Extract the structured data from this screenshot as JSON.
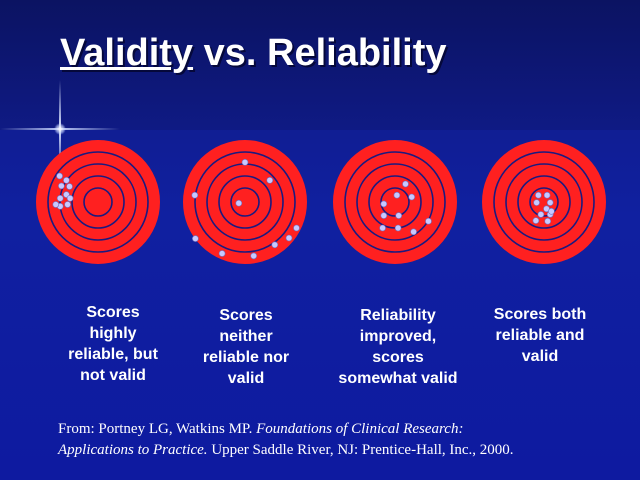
{
  "title": {
    "underlined": "Validity",
    "rest": " vs. Reliability"
  },
  "colors": {
    "ring_fill": "#ff2020",
    "ring_line": "#1a1a80",
    "dot": "#c8c8ff",
    "text": "#ffffff"
  },
  "targets": [
    {
      "caption": [
        "Scores",
        "highly",
        "reliable, but",
        "not valid"
      ],
      "hits": [
        [
          -0.62,
          -0.42
        ],
        [
          -0.51,
          -0.35
        ],
        [
          -0.59,
          -0.26
        ],
        [
          -0.46,
          -0.25
        ],
        [
          -0.51,
          -0.12
        ],
        [
          -0.61,
          -0.06
        ],
        [
          -0.45,
          -0.06
        ],
        [
          -0.61,
          0.07
        ],
        [
          -0.49,
          0.04
        ],
        [
          -0.68,
          0.04
        ]
      ]
    },
    {
      "caption": [
        "Scores",
        "neither",
        "reliable nor",
        "valid"
      ],
      "hits": [
        [
          0.0,
          -0.64
        ],
        [
          0.4,
          -0.35
        ],
        [
          -0.81,
          -0.11
        ],
        [
          -0.1,
          0.02
        ],
        [
          0.83,
          0.42
        ],
        [
          -0.8,
          0.59
        ],
        [
          0.48,
          0.69
        ],
        [
          -0.37,
          0.83
        ],
        [
          0.14,
          0.87
        ],
        [
          0.71,
          0.58
        ]
      ]
    },
    {
      "caption": [
        "Reliability",
        "improved,",
        "scores",
        "somewhat valid"
      ],
      "hits": [
        [
          0.03,
          -0.11
        ],
        [
          0.27,
          -0.08
        ],
        [
          0.54,
          0.31
        ],
        [
          -0.18,
          0.22
        ],
        [
          0.06,
          0.22
        ],
        [
          -0.2,
          0.42
        ],
        [
          0.05,
          0.42
        ],
        [
          0.3,
          0.48
        ],
        [
          -0.18,
          0.03
        ],
        [
          0.17,
          -0.29
        ]
      ]
    },
    {
      "caption": [
        "Scores both",
        "reliable and",
        "valid"
      ],
      "hits": [
        [
          -0.09,
          -0.11
        ],
        [
          0.05,
          -0.11
        ],
        [
          -0.12,
          0.01
        ],
        [
          0.1,
          0.01
        ],
        [
          0.04,
          0.11
        ],
        [
          -0.05,
          0.2
        ],
        [
          0.1,
          0.2
        ],
        [
          -0.13,
          0.3
        ],
        [
          0.06,
          0.31
        ],
        [
          0.12,
          0.15
        ]
      ]
    }
  ],
  "citation": {
    "line1_plain": "From:  Portney LG, Watkins MP.  ",
    "line1_italic": "Foundations of Clinical Research:",
    "line2_italic": "Applications to Practice.",
    "line2_plain": "  Upper Saddle River, NJ:  Prentice-Hall, Inc., 2000."
  }
}
